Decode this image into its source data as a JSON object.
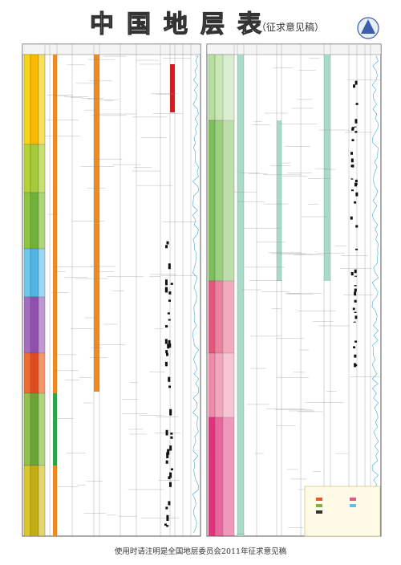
{
  "header": {
    "title": "中国地层表",
    "subtitle": "（征求意见稿）"
  },
  "footer": "使用时请注明是全国地层委员会2011年征求意见稿"
}
